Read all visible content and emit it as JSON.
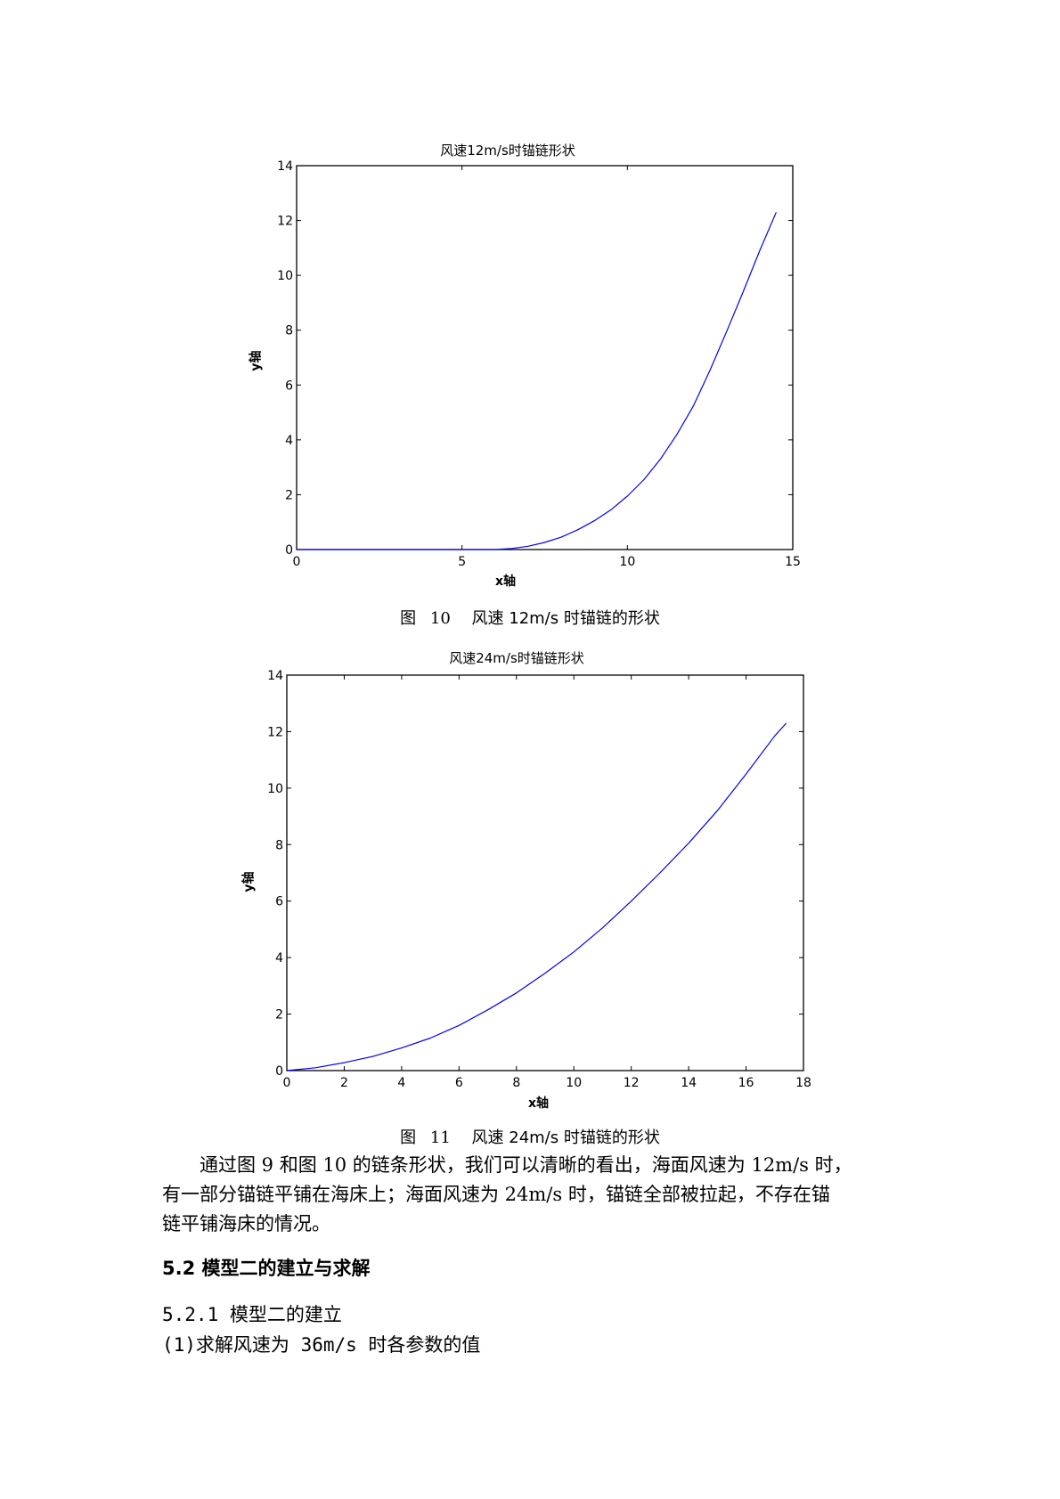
{
  "figure1": {
    "caption_prefix": "图",
    "caption_num": "10",
    "caption_text": "风速 12m/s 时锚链的形状",
    "chart_data": {
      "type": "line",
      "title": "风速12m/s时锚链形状",
      "xlabel": "x轴",
      "ylabel": "y轴",
      "xlim": [
        0,
        15
      ],
      "ylim": [
        0,
        14
      ],
      "xticks": [
        0,
        5,
        10,
        15
      ],
      "yticks": [
        0,
        2,
        4,
        6,
        8,
        10,
        12,
        14
      ],
      "grid": false,
      "series": [
        {
          "color": "#0000ff",
          "x": [
            0,
            2,
            4,
            6,
            6.5,
            7,
            7.5,
            8,
            8.5,
            9,
            9.5,
            10,
            10.5,
            11,
            11.5,
            12,
            12.5,
            13,
            13.5,
            14,
            14.5
          ],
          "y": [
            0,
            0,
            0,
            0,
            0.04,
            0.12,
            0.26,
            0.45,
            0.72,
            1.05,
            1.45,
            1.95,
            2.55,
            3.3,
            4.2,
            5.25,
            6.55,
            7.95,
            9.4,
            10.9,
            12.3
          ]
        }
      ]
    }
  },
  "figure2": {
    "caption_prefix": "图",
    "caption_num": "11",
    "caption_text": "风速 24m/s 时锚链的形状",
    "chart_data": {
      "type": "line",
      "title": "风速24m/s时锚链形状",
      "xlabel": "x轴",
      "ylabel": "y轴",
      "xlim": [
        0,
        18
      ],
      "ylim": [
        0,
        14
      ],
      "xticks": [
        0,
        2,
        4,
        6,
        8,
        10,
        12,
        14,
        16,
        18
      ],
      "yticks": [
        0,
        2,
        4,
        6,
        8,
        10,
        12,
        14
      ],
      "grid": false,
      "series": [
        {
          "color": "#0000ff",
          "x": [
            0,
            1,
            2,
            3,
            4,
            5,
            6,
            7,
            8,
            9,
            10,
            11,
            12,
            13,
            14,
            15,
            16,
            17,
            17.4
          ],
          "y": [
            0,
            0.1,
            0.28,
            0.5,
            0.8,
            1.15,
            1.6,
            2.15,
            2.75,
            3.45,
            4.2,
            5.05,
            6.0,
            7.0,
            8.05,
            9.2,
            10.5,
            11.85,
            12.3
          ]
        }
      ]
    }
  },
  "body": {
    "para_line1": "通过图 9 和图 10 的链条形状，我们可以清晰的看出，海面风速为 12m/s 时，",
    "para_line2": "有一部分锚链平铺在海床上；海面风速为 24m/s 时，锚链全部被拉起，不存在锚",
    "para_line3": "链平铺海床的情况。",
    "heading": "5.2 模型二的建立与求解",
    "subheading": "5.2.1 模型二的建立",
    "item1": "(1)求解风速为 36m/s 时各参数的值"
  }
}
